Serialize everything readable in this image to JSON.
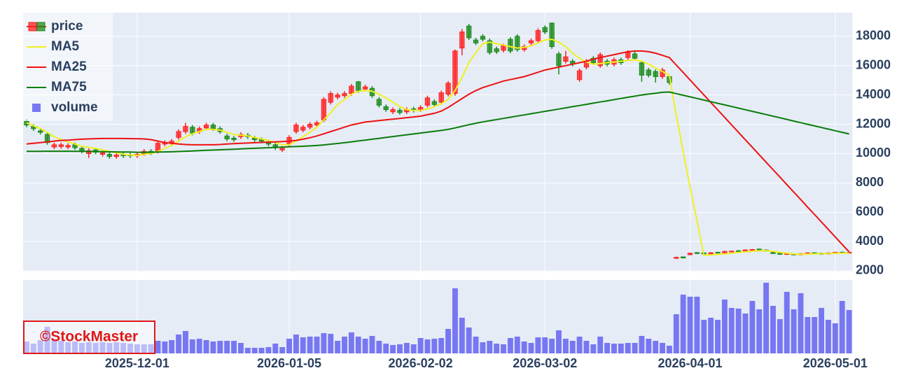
{
  "chart_data": {
    "type": "candlestick",
    "watermark": "©StockMaster",
    "legend": "top-left",
    "grid": true,
    "x": [
      "2025-11-06",
      "2025-11-07",
      "2025-11-10",
      "2025-11-11",
      "2025-11-12",
      "2025-11-13",
      "2025-11-14",
      "2025-11-17",
      "2025-11-18",
      "2025-11-19",
      "2025-11-20",
      "2025-11-21",
      "2025-11-25",
      "2025-11-26",
      "2025-11-27",
      "2025-11-28",
      "2025-12-01",
      "2025-12-02",
      "2025-12-03",
      "2025-12-04",
      "2025-12-05",
      "2025-12-08",
      "2025-12-09",
      "2025-12-10",
      "2025-12-11",
      "2025-12-12",
      "2025-12-15",
      "2025-12-16",
      "2025-12-17",
      "2025-12-18",
      "2025-12-19",
      "2025-12-22",
      "2025-12-23",
      "2025-12-24",
      "2025-12-25",
      "2025-12-26",
      "2025-12-29",
      "2025-12-30",
      "2026-01-05",
      "2026-01-06",
      "2026-01-07",
      "2026-01-08",
      "2026-01-09",
      "2026-01-13",
      "2026-01-14",
      "2026-01-15",
      "2026-01-16",
      "2026-01-19",
      "2026-01-20",
      "2026-01-21",
      "2026-01-22",
      "2026-01-23",
      "2026-01-26",
      "2026-01-27",
      "2026-01-28",
      "2026-01-29",
      "2026-01-30",
      "2026-02-02",
      "2026-02-03",
      "2026-02-04",
      "2026-02-05",
      "2026-02-06",
      "2026-02-09",
      "2026-02-10",
      "2026-02-12",
      "2026-02-13",
      "2026-02-16",
      "2026-02-17",
      "2026-02-18",
      "2026-02-19",
      "2026-02-20",
      "2026-02-24",
      "2026-02-25",
      "2026-02-26",
      "2026-02-27",
      "2026-03-02",
      "2026-03-03",
      "2026-03-04",
      "2026-03-05",
      "2026-03-06",
      "2026-03-09",
      "2026-03-10",
      "2026-03-11",
      "2026-03-12",
      "2026-03-13",
      "2026-03-16",
      "2026-03-17",
      "2026-03-18",
      "2026-03-19",
      "2026-03-23",
      "2026-03-24",
      "2026-03-25",
      "2026-03-26",
      "2026-03-27",
      "2026-03-30",
      "2026-03-31",
      "2026-04-01",
      "2026-04-02",
      "2026-04-03",
      "2026-04-06",
      "2026-04-07",
      "2026-04-08",
      "2026-04-09",
      "2026-04-10",
      "2026-04-13",
      "2026-04-14",
      "2026-04-15",
      "2026-04-16",
      "2026-04-17",
      "2026-04-20",
      "2026-04-21",
      "2026-04-22",
      "2026-04-23",
      "2026-04-24",
      "2026-04-27",
      "2026-04-28",
      "2026-04-30",
      "2026-05-01",
      "2026-05-07",
      "2026-05-08"
    ],
    "xticks": [
      "2025-12-01",
      "2026-01-05",
      "2026-02-02",
      "2026-03-02",
      "2026-04-01",
      "2026-05-01"
    ],
    "ylim": [
      1950,
      19620
    ],
    "yticks": [
      2000,
      4000,
      6000,
      8000,
      10000,
      12000,
      14000,
      16000,
      18000
    ],
    "candles": {
      "name": "price",
      "increasing_color": "#ff2020",
      "decreasing_color": "#1a8a1a",
      "open": [
        12200,
        11850,
        11550,
        11300,
        10450,
        10480,
        10450,
        10600,
        10350,
        10000,
        10250,
        9950,
        9950,
        9800,
        9950,
        9900,
        9850,
        10000,
        10150,
        10150,
        10650,
        10700,
        11100,
        11500,
        11800,
        11500,
        11750,
        11950,
        11700,
        11200,
        11050,
        11150,
        11250,
        11050,
        10950,
        10800,
        10600,
        10250,
        10650,
        11500,
        11600,
        11800,
        11950,
        12300,
        13500,
        13850,
        13950,
        14100,
        14900,
        14400,
        14450,
        13700,
        13200,
        12850,
        12950,
        12850,
        13050,
        13000,
        13300,
        13550,
        13500,
        14050,
        14100,
        17200,
        18700,
        17750,
        18000,
        17700,
        17150,
        17050,
        17800,
        18000,
        17100,
        17550,
        17700,
        18600,
        18900,
        16800,
        16300,
        16300,
        15050,
        15900,
        16500,
        16000,
        16300,
        16100,
        16400,
        16550,
        16800,
        16200,
        15700,
        15600,
        15250,
        15250,
        2850,
        2950,
        3100,
        3240,
        3220,
        3160,
        3260,
        3230,
        3300,
        3370,
        3350,
        3400,
        3480,
        3420,
        3250,
        3190,
        3120,
        3140,
        3100,
        3150,
        3230,
        3200,
        3150,
        3200,
        3270,
        3210
      ],
      "high": [
        12350,
        12000,
        11700,
        11450,
        10750,
        10750,
        10700,
        10750,
        10500,
        10350,
        10400,
        10200,
        10100,
        10050,
        10100,
        10050,
        10100,
        10300,
        10300,
        10850,
        10900,
        11000,
        11650,
        12100,
        11950,
        11850,
        12100,
        12100,
        11850,
        11350,
        11200,
        11450,
        11400,
        11200,
        11100,
        10950,
        10750,
        10500,
        11250,
        12100,
        11950,
        12150,
        12250,
        13850,
        14250,
        14150,
        14250,
        14750,
        14950,
        14700,
        14600,
        13850,
        13350,
        13150,
        13100,
        13150,
        13200,
        13300,
        13950,
        13700,
        14300,
        14950,
        17100,
        18500,
        18850,
        17900,
        18150,
        17850,
        17300,
        17500,
        17950,
        18150,
        17450,
        17850,
        18550,
        18750,
        18950,
        16950,
        17000,
        16450,
        15800,
        16450,
        16650,
        16900,
        16450,
        16550,
        16550,
        17050,
        16950,
        16350,
        15850,
        15750,
        15850,
        15400,
        2960,
        2980,
        3240,
        3280,
        3260,
        3270,
        3300,
        3360,
        3380,
        3410,
        3460,
        3490,
        3520,
        3460,
        3290,
        3230,
        3210,
        3180,
        3210,
        3260,
        3270,
        3240,
        3260,
        3300,
        3310,
        3300
      ],
      "low": [
        11800,
        11550,
        11300,
        10600,
        10300,
        10330,
        10300,
        10250,
        10000,
        9700,
        9950,
        9800,
        9650,
        9650,
        9700,
        9700,
        9700,
        9850,
        9900,
        10000,
        10500,
        10550,
        10950,
        11350,
        11250,
        11350,
        11600,
        11550,
        11350,
        10850,
        10800,
        11000,
        11000,
        10800,
        10700,
        10500,
        10250,
        10100,
        10500,
        11350,
        11450,
        11650,
        11800,
        12150,
        13350,
        13700,
        13800,
        13950,
        14150,
        14250,
        13800,
        13150,
        12850,
        12700,
        12650,
        12700,
        12800,
        12850,
        13150,
        13200,
        13350,
        13900,
        13950,
        16700,
        17750,
        17400,
        17650,
        16750,
        16800,
        16900,
        16850,
        16950,
        16950,
        17400,
        17550,
        18150,
        17150,
        15400,
        16150,
        15950,
        14900,
        15750,
        16050,
        15850,
        15950,
        15950,
        16050,
        16400,
        16350,
        14900,
        15200,
        14850,
        15100,
        14700,
        2810,
        2840,
        3060,
        3140,
        3120,
        3120,
        3180,
        3190,
        3260,
        3280,
        3310,
        3360,
        3390,
        3310,
        3140,
        3090,
        3080,
        3050,
        3060,
        3110,
        3150,
        3090,
        3110,
        3160,
        3190,
        3170
      ],
      "close": [
        11950,
        11700,
        11450,
        10750,
        10600,
        10600,
        10550,
        10400,
        10150,
        10200,
        10100,
        10050,
        9800,
        9900,
        9850,
        9850,
        9950,
        10150,
        10050,
        10700,
        10750,
        10850,
        11500,
        11850,
        11400,
        11700,
        11950,
        11700,
        11500,
        11000,
        10950,
        11300,
        11150,
        10950,
        10850,
        10650,
        10400,
        10350,
        11100,
        11950,
        11800,
        12000,
        12100,
        13700,
        14100,
        14000,
        14100,
        14600,
        14300,
        14550,
        13950,
        13300,
        13000,
        13000,
        12800,
        13000,
        12950,
        13150,
        13800,
        13350,
        14150,
        14800,
        17000,
        18300,
        17900,
        17550,
        17800,
        16900,
        16950,
        17350,
        17000,
        17100,
        17300,
        17700,
        18400,
        18300,
        17300,
        16000,
        16600,
        16100,
        15650,
        16300,
        16200,
        16750,
        16100,
        16400,
        16200,
        16900,
        16500,
        15350,
        15350,
        15250,
        15700,
        14850,
        2920,
        2880,
        3200,
        3180,
        3160,
        3230,
        3220,
        3320,
        3340,
        3320,
        3420,
        3450,
        3430,
        3350,
        3180,
        3130,
        3170,
        3090,
        3170,
        3220,
        3190,
        3130,
        3220,
        3260,
        3230,
        3260
      ]
    },
    "lines": [
      {
        "name": "MA5",
        "color": "#f0f020",
        "values": [
          12100,
          11900,
          11700,
          11450,
          11150,
          10950,
          10800,
          10650,
          10500,
          10420,
          10350,
          10250,
          10150,
          10050,
          9950,
          9900,
          9880,
          9950,
          10000,
          10150,
          10350,
          10550,
          10850,
          11150,
          11350,
          11500,
          11650,
          11650,
          11600,
          11450,
          11300,
          11250,
          11200,
          11100,
          11000,
          10900,
          10750,
          10600,
          10600,
          10850,
          11150,
          11450,
          11800,
          12300,
          12800,
          13350,
          13700,
          14050,
          14250,
          14300,
          14250,
          14050,
          13800,
          13500,
          13200,
          13000,
          12950,
          12950,
          13050,
          13200,
          13400,
          13700,
          14300,
          15200,
          16200,
          16900,
          17500,
          17600,
          17500,
          17400,
          17300,
          17200,
          17250,
          17350,
          17550,
          17750,
          17800,
          17600,
          17300,
          16850,
          16500,
          16250,
          16100,
          16150,
          16200,
          16250,
          16300,
          16350,
          16400,
          16300,
          16100,
          15850,
          15600,
          15350,
          12600,
          10100,
          7700,
          5400,
          3050,
          3080,
          3120,
          3160,
          3200,
          3250,
          3300,
          3340,
          3370,
          3380,
          3330,
          3260,
          3200,
          3150,
          3130,
          3140,
          3160,
          3170,
          3180,
          3190,
          3200,
          3210
        ]
      },
      {
        "name": "MA25",
        "color": "#ee1111",
        "values": [
          10650,
          10700,
          10750,
          10800,
          10850,
          10900,
          10920,
          10950,
          10980,
          11000,
          11020,
          11030,
          11030,
          11030,
          11030,
          11020,
          11010,
          11000,
          10950,
          10850,
          10750,
          10700,
          10650,
          10620,
          10600,
          10600,
          10600,
          10600,
          10620,
          10650,
          10680,
          10700,
          10720,
          10740,
          10760,
          10780,
          10800,
          10820,
          10850,
          10900,
          10980,
          11080,
          11200,
          11350,
          11500,
          11650,
          11800,
          11950,
          12050,
          12150,
          12200,
          12250,
          12300,
          12350,
          12400,
          12450,
          12500,
          12550,
          12650,
          12750,
          12900,
          13150,
          13450,
          13750,
          14050,
          14300,
          14500,
          14650,
          14800,
          14950,
          15050,
          15150,
          15250,
          15400,
          15550,
          15700,
          15800,
          15900,
          16000,
          16100,
          16200,
          16300,
          16450,
          16550,
          16650,
          16750,
          16850,
          16950,
          17000,
          17000,
          16950,
          16850,
          16700,
          16550,
          16040,
          15530,
          15020,
          14510,
          14000,
          13490,
          12980,
          12470,
          11960,
          11450,
          10940,
          10430,
          9920,
          9410,
          8900,
          8390,
          7880,
          7370,
          6860,
          6350,
          5840,
          5330,
          4820,
          4310,
          3800,
          3290
        ]
      },
      {
        "name": "MA75",
        "color": "#0a7d0a",
        "values": [
          10150,
          10150,
          10150,
          10160,
          10160,
          10160,
          10160,
          10150,
          10150,
          10140,
          10140,
          10130,
          10120,
          10110,
          10100,
          10100,
          10090,
          10090,
          10090,
          10100,
          10110,
          10120,
          10140,
          10160,
          10180,
          10200,
          10220,
          10240,
          10260,
          10280,
          10300,
          10320,
          10340,
          10360,
          10380,
          10400,
          10420,
          10440,
          10460,
          10480,
          10500,
          10520,
          10550,
          10590,
          10640,
          10690,
          10740,
          10800,
          10860,
          10920,
          10980,
          11040,
          11100,
          11160,
          11220,
          11280,
          11340,
          11400,
          11460,
          11520,
          11580,
          11650,
          11750,
          11860,
          11970,
          12070,
          12160,
          12240,
          12320,
          12400,
          12480,
          12560,
          12640,
          12720,
          12800,
          12880,
          12960,
          13040,
          13120,
          13200,
          13280,
          13360,
          13440,
          13520,
          13600,
          13680,
          13760,
          13840,
          13920,
          14000,
          14060,
          14120,
          14180,
          14200,
          14090,
          13980,
          13870,
          13760,
          13650,
          13540,
          13430,
          13320,
          13210,
          13100,
          12990,
          12880,
          12770,
          12660,
          12550,
          12440,
          12330,
          12220,
          12110,
          12000,
          11890,
          11780,
          11670,
          11560,
          11450,
          11340
        ]
      }
    ],
    "volume": {
      "name": "volume",
      "type": "bar",
      "color": "#7777f2",
      "ylim": [
        0,
        105
      ],
      "values": [
        17,
        14,
        19,
        38,
        20,
        18,
        16,
        17,
        15,
        16,
        15,
        16,
        15,
        16,
        15,
        14,
        13,
        13,
        13,
        18,
        17,
        19,
        27,
        32,
        20,
        21,
        19,
        17,
        18,
        18,
        18,
        15,
        8,
        8,
        8,
        9,
        14,
        9,
        21,
        27,
        23,
        24,
        24,
        29,
        28,
        18,
        24,
        30,
        24,
        21,
        25,
        18,
        14,
        12,
        13,
        15,
        13,
        22,
        20,
        21,
        22,
        35,
        93,
        51,
        37,
        24,
        16,
        18,
        14,
        13,
        22,
        24,
        17,
        15,
        23,
        23,
        21,
        33,
        21,
        18,
        24,
        18,
        13,
        24,
        15,
        14,
        14,
        15,
        15,
        25,
        21,
        18,
        15,
        11,
        56,
        84,
        81,
        81,
        48,
        51,
        48,
        77,
        65,
        64,
        57,
        75,
        63,
        101,
        68,
        49,
        88,
        63,
        86,
        52,
        52,
        65,
        48,
        43,
        75,
        62
      ]
    }
  }
}
